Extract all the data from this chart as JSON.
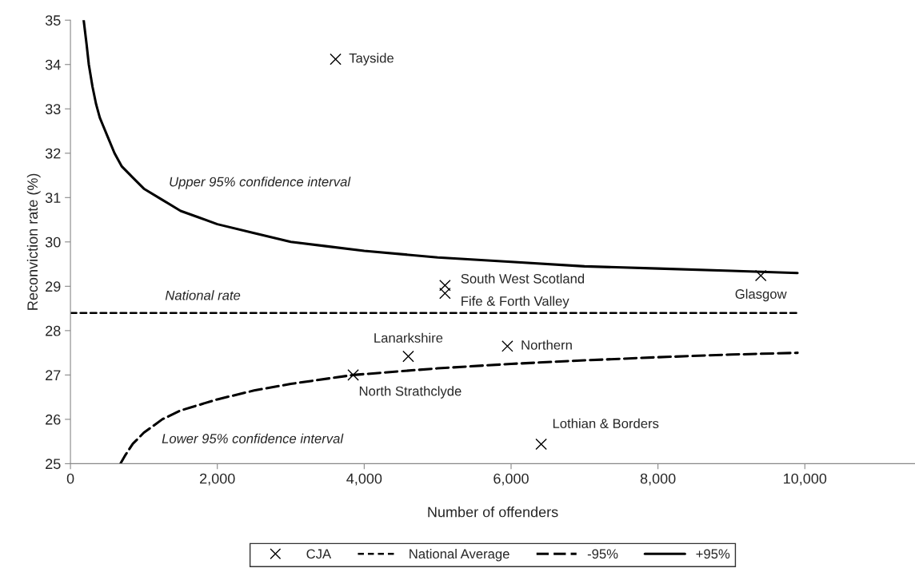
{
  "chart_data": {
    "type": "scatter",
    "xlabel": "Number of offenders",
    "ylabel": "Reconviction rate (%)",
    "xlim": [
      0,
      11500
    ],
    "xticks": [
      {
        "value": 0,
        "label": "0"
      },
      {
        "value": 2000,
        "label": "2,000"
      },
      {
        "value": 4000,
        "label": "4,000"
      },
      {
        "value": 6000,
        "label": "6,000"
      },
      {
        "value": 8000,
        "label": "8,000"
      },
      {
        "value": 10000,
        "label": "10,000"
      }
    ],
    "ylim": [
      25,
      35
    ],
    "yticks": [
      25,
      26,
      27,
      28,
      29,
      30,
      31,
      32,
      33,
      34,
      35
    ],
    "grid": false,
    "legend": "bottom",
    "series": [
      {
        "name": "CJA",
        "marker": "cross",
        "color": "#000000",
        "x": [
          3610,
          5100,
          5100,
          9400,
          4600,
          5950,
          3850,
          6410
        ],
        "values": [
          34.12,
          29.02,
          28.84,
          29.24,
          27.42,
          27.65,
          27.0,
          25.44
        ]
      },
      {
        "name": "National Average",
        "type": "line",
        "line_style": "dotted",
        "color": "#000000",
        "x": [
          0,
          9900
        ],
        "values": [
          28.4,
          28.4
        ]
      },
      {
        "name": "-95%",
        "type": "line",
        "line_style": "dashed",
        "color": "#000000",
        "x": [
          680,
          750,
          850,
          1000,
          1250,
          1500,
          2000,
          2500,
          3000,
          3850,
          5000,
          6000,
          7000,
          8000,
          9000,
          9900
        ],
        "values": [
          25.0,
          25.2,
          25.45,
          25.7,
          26.0,
          26.2,
          26.45,
          26.65,
          26.8,
          27.0,
          27.15,
          27.25,
          27.33,
          27.4,
          27.46,
          27.5
        ]
      },
      {
        "name": "+95%",
        "type": "line",
        "line_style": "solid",
        "color": "#000000",
        "x": [
          180,
          220,
          250,
          300,
          350,
          400,
          450,
          500,
          600,
          700,
          850,
          1000,
          1250,
          1500,
          1750,
          2000,
          2500,
          3000,
          3500,
          4000,
          5000,
          6000,
          7000,
          8000,
          9000,
          9900
        ],
        "values": [
          35.0,
          34.45,
          34.0,
          33.5,
          33.1,
          32.8,
          32.6,
          32.4,
          32.0,
          31.7,
          31.45,
          31.2,
          30.95,
          30.7,
          30.55,
          30.4,
          30.2,
          30.0,
          29.9,
          29.8,
          29.65,
          29.55,
          29.45,
          29.4,
          29.35,
          29.3
        ]
      }
    ],
    "annotations": [
      {
        "text": "Tayside",
        "x": 3610,
        "y": 34.12
      },
      {
        "text": "South West Scotland",
        "x": 5100,
        "y": 29.02
      },
      {
        "text": "Fife & Forth Valley",
        "x": 5100,
        "y": 28.84
      },
      {
        "text": "Glasgow",
        "x": 9400,
        "y": 29.24
      },
      {
        "text": "Lanarkshire",
        "x": 4600,
        "y": 27.42
      },
      {
        "text": "Northern",
        "x": 5950,
        "y": 27.65
      },
      {
        "text": "North Strathclyde",
        "x": 3850,
        "y": 27.0
      },
      {
        "text": "Lothian & Borders",
        "x": 6410,
        "y": 25.44
      },
      "Upper 95% confidence interval",
      "National rate",
      "Lower 95% confidence interval"
    ]
  }
}
